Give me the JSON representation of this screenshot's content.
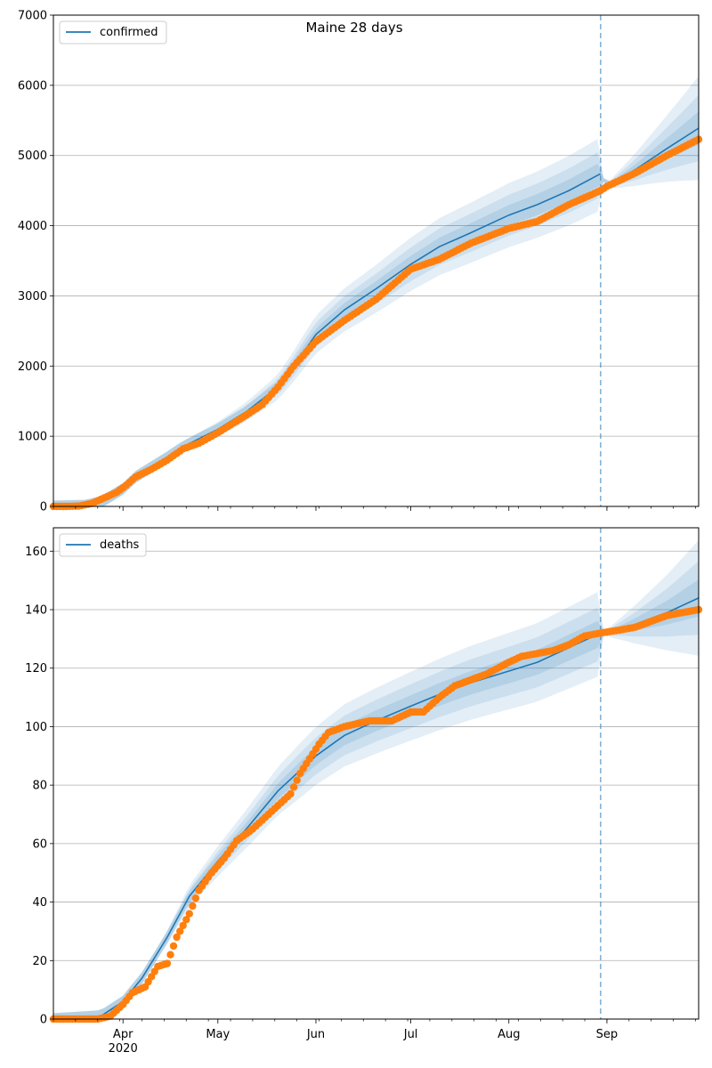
{
  "chart_data": [
    {
      "type": "line",
      "title": "Maine 28 days",
      "xlabel": "",
      "ylabel": "",
      "xlim": [
        "2020-03-10",
        "2020-09-30"
      ],
      "ylim": [
        0,
        7000
      ],
      "yticks": [
        0,
        1000,
        2000,
        3000,
        4000,
        5000,
        6000,
        7000
      ],
      "grid": "horizontal",
      "legend": "top-left",
      "forecast_start": "2020-08-30",
      "series": [
        {
          "name": "confirmed",
          "style": "line",
          "color": "#1f77b4",
          "points": [
            [
              "2020-03-10",
              0
            ],
            [
              "2020-03-20",
              10
            ],
            [
              "2020-03-25",
              60
            ],
            [
              "2020-04-01",
              250
            ],
            [
              "2020-04-05",
              420
            ],
            [
              "2020-04-15",
              700
            ],
            [
              "2020-04-20",
              850
            ],
            [
              "2020-05-01",
              1100
            ],
            [
              "2020-05-10",
              1350
            ],
            [
              "2020-05-20",
              1700
            ],
            [
              "2020-05-25",
              2000
            ],
            [
              "2020-06-01",
              2450
            ],
            [
              "2020-06-10",
              2800
            ],
            [
              "2020-06-20",
              3100
            ],
            [
              "2020-07-01",
              3450
            ],
            [
              "2020-07-10",
              3700
            ],
            [
              "2020-07-20",
              3900
            ],
            [
              "2020-08-01",
              4150
            ],
            [
              "2020-08-10",
              4300
            ],
            [
              "2020-08-20",
              4500
            ],
            [
              "2020-08-30",
              4740
            ],
            [
              "2020-09-01",
              4560
            ],
            [
              "2020-09-10",
              4800
            ],
            [
              "2020-09-20",
              5100
            ],
            [
              "2020-09-30",
              5390
            ]
          ]
        },
        {
          "name": "",
          "style": "markers",
          "color": "#ff7f0e",
          "points": [
            [
              "2020-03-10",
              0
            ],
            [
              "2020-03-14",
              0
            ],
            [
              "2020-03-18",
              5
            ],
            [
              "2020-03-22",
              40
            ],
            [
              "2020-03-26",
              120
            ],
            [
              "2020-03-30",
              200
            ],
            [
              "2020-04-02",
              300
            ],
            [
              "2020-04-05",
              420
            ],
            [
              "2020-04-10",
              530
            ],
            [
              "2020-04-15",
              660
            ],
            [
              "2020-04-20",
              820
            ],
            [
              "2020-04-25",
              900
            ],
            [
              "2020-05-01",
              1050
            ],
            [
              "2020-05-10",
              1300
            ],
            [
              "2020-05-15",
              1450
            ],
            [
              "2020-05-20",
              1700
            ],
            [
              "2020-05-25",
              2000
            ],
            [
              "2020-06-01",
              2350
            ],
            [
              "2020-06-10",
              2650
            ],
            [
              "2020-06-20",
              2950
            ],
            [
              "2020-07-01",
              3380
            ],
            [
              "2020-07-10",
              3520
            ],
            [
              "2020-07-20",
              3750
            ],
            [
              "2020-08-01",
              3960
            ],
            [
              "2020-08-10",
              4060
            ],
            [
              "2020-08-20",
              4300
            ],
            [
              "2020-08-30",
              4500
            ],
            [
              "2020-09-01",
              4560
            ],
            [
              "2020-09-10",
              4750
            ],
            [
              "2020-09-20",
              5000
            ],
            [
              "2020-09-30",
              5230
            ]
          ]
        }
      ]
    },
    {
      "type": "line",
      "title": "",
      "xlabel": "",
      "ylabel": "",
      "xlim": [
        "2020-03-10",
        "2020-09-30"
      ],
      "ylim": [
        0,
        168
      ],
      "yticks": [
        0,
        20,
        40,
        60,
        80,
        100,
        120,
        140,
        160
      ],
      "xticks": [
        "Apr",
        "May",
        "Jun",
        "Jul",
        "Aug",
        "Sep"
      ],
      "xtick_dates": [
        "2020-04-01",
        "2020-05-01",
        "2020-06-01",
        "2020-07-01",
        "2020-08-01",
        "2020-09-01"
      ],
      "year_label": "2020",
      "grid": "horizontal",
      "legend": "top-left",
      "forecast_start": "2020-08-30",
      "series": [
        {
          "name": "deaths",
          "style": "line",
          "color": "#1f77b4",
          "points": [
            [
              "2020-03-10",
              0
            ],
            [
              "2020-03-25",
              1
            ],
            [
              "2020-04-01",
              6
            ],
            [
              "2020-04-07",
              14
            ],
            [
              "2020-04-15",
              28
            ],
            [
              "2020-04-22",
              42
            ],
            [
              "2020-05-01",
              54
            ],
            [
              "2020-05-10",
              65
            ],
            [
              "2020-05-20",
              78
            ],
            [
              "2020-06-01",
              90
            ],
            [
              "2020-06-10",
              97
            ],
            [
              "2020-06-20",
              102
            ],
            [
              "2020-07-01",
              107
            ],
            [
              "2020-07-10",
              111
            ],
            [
              "2020-07-20",
              115
            ],
            [
              "2020-08-01",
              119
            ],
            [
              "2020-08-10",
              122
            ],
            [
              "2020-08-20",
              127
            ],
            [
              "2020-08-30",
              132
            ],
            [
              "2020-09-01",
              132
            ],
            [
              "2020-09-10",
              135
            ],
            [
              "2020-09-20",
              139
            ],
            [
              "2020-09-30",
              144
            ]
          ]
        },
        {
          "name": "",
          "style": "markers",
          "color": "#ff7f0e",
          "points": [
            [
              "2020-03-10",
              0
            ],
            [
              "2020-03-24",
              0
            ],
            [
              "2020-03-28",
              1
            ],
            [
              "2020-04-01",
              5
            ],
            [
              "2020-04-04",
              9
            ],
            [
              "2020-04-08",
              11
            ],
            [
              "2020-04-12",
              18
            ],
            [
              "2020-04-15",
              19
            ],
            [
              "2020-04-18",
              28
            ],
            [
              "2020-04-22",
              36
            ],
            [
              "2020-04-25",
              44
            ],
            [
              "2020-04-29",
              50
            ],
            [
              "2020-05-03",
              55
            ],
            [
              "2020-05-07",
              61
            ],
            [
              "2020-05-12",
              65
            ],
            [
              "2020-05-16",
              69
            ],
            [
              "2020-05-20",
              73
            ],
            [
              "2020-05-24",
              77
            ],
            [
              "2020-05-27",
              84
            ],
            [
              "2020-05-30",
              89
            ],
            [
              "2020-06-02",
              94
            ],
            [
              "2020-06-05",
              98
            ],
            [
              "2020-06-10",
              100
            ],
            [
              "2020-06-18",
              102
            ],
            [
              "2020-06-25",
              102
            ],
            [
              "2020-07-01",
              105
            ],
            [
              "2020-07-05",
              105
            ],
            [
              "2020-07-10",
              110
            ],
            [
              "2020-07-15",
              114
            ],
            [
              "2020-07-20",
              116
            ],
            [
              "2020-07-25",
              118
            ],
            [
              "2020-08-01",
              122
            ],
            [
              "2020-08-05",
              124
            ],
            [
              "2020-08-10",
              125
            ],
            [
              "2020-08-15",
              126
            ],
            [
              "2020-08-20",
              128
            ],
            [
              "2020-08-25",
              131
            ],
            [
              "2020-08-30",
              132
            ],
            [
              "2020-09-05",
              133
            ],
            [
              "2020-09-10",
              134
            ],
            [
              "2020-09-15",
              136
            ],
            [
              "2020-09-20",
              138
            ],
            [
              "2020-09-25",
              139
            ],
            [
              "2020-09-30",
              140
            ]
          ]
        }
      ]
    }
  ]
}
